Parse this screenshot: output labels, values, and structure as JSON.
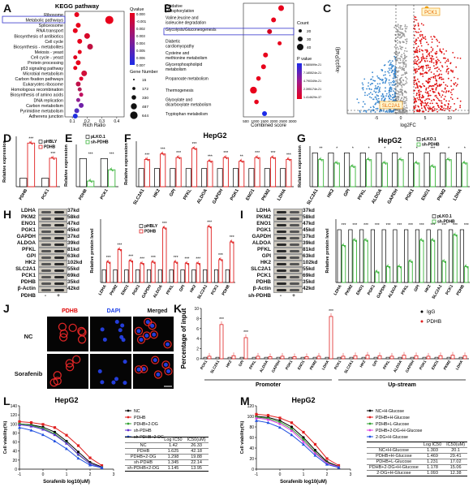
{
  "panels": {
    "A": {
      "label": "A",
      "title": "KEGG pathway",
      "xlabel": "Rich Ratio",
      "terms": [
        "Ribosome",
        "Metabolic pathways",
        "Spliceosome",
        "RNA transport",
        "Biosynthesis of antibiotics",
        "Cell cycle",
        "Biosynthesis - metabolites",
        "Meiosis - yeast",
        "Cell cycle - yeast",
        "Protein processing",
        "p53 signaling pathway",
        "Microbial metabolism",
        "Carbon fixation pathways",
        "Eukaryotes ribosome",
        "Homologous recombination",
        "Biosynthesis of amino acids",
        "DNA replication",
        "Carbon metabolism",
        "Pyrimidine metabolism",
        "Adherens junction"
      ],
      "highlight": "Metabolic pathways",
      "xticks": [
        "0.1",
        "0.2",
        "0.3",
        "0.4"
      ],
      "qvalue_title": "Qvalue",
      "qvalue_ticks": [
        "0.000",
        "-0.001",
        "0.002",
        "0.003",
        "0.004",
        "0.005",
        "0.006",
        "0.007"
      ],
      "gene_title": "Gene Number",
      "gene_ticks": [
        "15",
        "172",
        "330",
        "487",
        "644"
      ]
    },
    "B": {
      "label": "B",
      "xlabel": "Combined score",
      "terms": [
        "Oxidative phosphorylation",
        "Valine,leucine and isoleucine degradation",
        "Glycolysis/Gluconeogenesis",
        "Diabetic cardiomyopathy",
        "Cysteine and methionine metabolism",
        "Glycerophospholipid metabolism",
        "Propanoate metabolism",
        "Thermogenesis",
        "Glyoxylate and dicarboxylate metabolism",
        "Tryptophan metabolism"
      ],
      "highlight": "Glycolysis/Gluconeogenesis",
      "xticks": [
        "500",
        "1000",
        "1500",
        "2000",
        "2500",
        "3000"
      ],
      "count_title": "Count",
      "count_ticks": [
        "20",
        "30",
        "40"
      ],
      "p_title": "P value",
      "p_ticks": [
        "9.580699e-21",
        "7.185524e-21",
        "4.790349e-21",
        "2.395174e-21",
        "1.414629e-37"
      ]
    },
    "C": {
      "label": "C",
      "xlabel": "log2FC",
      "ylabel": "-log10(Padj)",
      "xticks": [
        "-5",
        "0",
        "5",
        "10"
      ],
      "ann_up": "PCK1",
      "ann_down": "SLC2A1"
    },
    "D": {
      "label": "D",
      "ylabel": "Relative expression",
      "legend": [
        "pHBLY",
        "PDHB"
      ],
      "categories": [
        "PDHB",
        "PCK1"
      ],
      "sig": [
        "***",
        "***"
      ]
    },
    "E": {
      "label": "E",
      "ylabel": "Relative expression",
      "legend": [
        "pLKO.1",
        "sh-PDHB"
      ],
      "categories": [
        "PDHB",
        "PCK1"
      ],
      "sig": [
        "***",
        "***"
      ]
    },
    "F": {
      "label": "F",
      "title": "HepG2",
      "ylabel": "Relative expression",
      "categories": [
        "SLC2A1",
        "HK2",
        "GPI",
        "PFKL",
        "ALDOA",
        "GAPDH",
        "PGK1",
        "ENO1",
        "PKM2",
        "LDHA"
      ],
      "sig": [
        "***",
        "***",
        "***",
        "***",
        "***",
        "***",
        "**",
        "***",
        "***",
        "***"
      ]
    },
    "G": {
      "label": "G",
      "title": "HepG2",
      "ylabel": "Relative expression",
      "legend": [
        "pLKO.1",
        "sh-PDHB"
      ],
      "categories": [
        "SLC2A1",
        "HK2",
        "GPI",
        "PFKL",
        "ALDOA",
        "GAPDH",
        "PGK1",
        "ENO1",
        "PKM2",
        "LDHA"
      ],
      "sig": [
        "**",
        "*",
        "*",
        "*",
        "*",
        "*",
        "*",
        "***",
        "*",
        "*"
      ]
    },
    "H": {
      "label": "H",
      "ylabel": "Relative protein level",
      "legend": [
        "pHBLY",
        "PDHB"
      ],
      "blots": [
        [
          "LDHA",
          "37kd"
        ],
        [
          "PKM2",
          "58kd"
        ],
        [
          "ENO1",
          "47kd"
        ],
        [
          "PGK1",
          "45kd"
        ],
        [
          "GAPDH",
          "37kd"
        ],
        [
          "ALDOA",
          "39kd"
        ],
        [
          "PFKL",
          "81kd"
        ],
        [
          "GPI",
          "63kd"
        ],
        [
          "HK2",
          "102kd"
        ],
        [
          "SLC2A1",
          "55kd"
        ],
        [
          "PCK1",
          "69kd"
        ],
        [
          "PDHB",
          "35kd"
        ],
        [
          "β-Actin",
          "42kd"
        ]
      ],
      "bottom": [
        "PDHB",
        "-",
        "+"
      ],
      "categories": [
        "LDHA",
        "PKM2",
        "ENO1",
        "PGK1",
        "GAPDH",
        "ALDOA",
        "PFKL",
        "GPI",
        "HK2",
        "SLC2A1",
        "PCK1",
        "PDHB"
      ],
      "sig": [
        "***",
        "***",
        "***",
        "***",
        "***",
        "***",
        "***",
        "***",
        "***",
        "***",
        "***",
        "***"
      ]
    },
    "I": {
      "label": "I",
      "ylabel": "Relative protein level",
      "legend": [
        "pLKO.1",
        "sh-PDHB"
      ],
      "blots": [
        [
          "LDHA",
          "37kd"
        ],
        [
          "PKM2",
          "58kd"
        ],
        [
          "ENO1",
          "47kd"
        ],
        [
          "PGK1",
          "45kd"
        ],
        [
          "GAPDH",
          "37kd"
        ],
        [
          "ALDOA",
          "39kd"
        ],
        [
          "PFKL",
          "81kd"
        ],
        [
          "GPI",
          "63kd"
        ],
        [
          "HK2",
          "102kd"
        ],
        [
          "SLC2A1",
          "55kd"
        ],
        [
          "PCK1",
          "69kd"
        ],
        [
          "PDHB",
          "35kd"
        ],
        [
          "β-Actin",
          "42kd"
        ]
      ],
      "bottom": [
        "sh-PDHB",
        "-",
        "+"
      ],
      "categories": [
        "LDHA",
        "PKM2",
        "ENO1",
        "PGK1",
        "GAPDH",
        "ALDOA",
        "PFKL",
        "GPI",
        "HK2",
        "SLC2A1",
        "PCK1",
        "PDHB"
      ],
      "sig": [
        "***",
        "***",
        "***",
        "***",
        "***",
        "***",
        "***",
        "***",
        "***",
        "***",
        "***",
        "***"
      ]
    },
    "J": {
      "label": "J",
      "cols": [
        "PDHB",
        "DAPI",
        "Merged"
      ],
      "rows": [
        "NC",
        "Sorafenib"
      ]
    },
    "K": {
      "label": "K",
      "ylabel": "Percentage of input",
      "legend": [
        "IgG",
        "PDHB"
      ],
      "yticks": [
        "0",
        "2",
        "4",
        "6",
        "8",
        "10"
      ],
      "categories": [
        "PCK1",
        "SLC2A1",
        "HK2",
        "GPI",
        "PFKL",
        "ALDOA",
        "GAPDH",
        "PGK1",
        "ENO1",
        "PKM2",
        "LDHA",
        "PCK1",
        "SLC2A1",
        "HK2",
        "GPI",
        "PFKL",
        "ALDOA",
        "GAPDH",
        "PGK1",
        "ENO1",
        "PKM2",
        "LDHA"
      ],
      "group_labels": [
        "Promoter",
        "Up-stream"
      ]
    },
    "L": {
      "label": "L",
      "title": "HepG2",
      "ylabel": "Cell viability(%)",
      "xlabel": "Sorafenib log10(uM)",
      "legend": [
        "NC",
        "PDHB",
        "PDHB+2-DG",
        "sh-PDHB",
        "sh-PDHB+2-DG"
      ],
      "yticks": [
        "0",
        "20",
        "40",
        "60",
        "80",
        "100",
        "120",
        "140"
      ],
      "xticks": [
        "-1",
        "0",
        "1",
        "2",
        "3"
      ],
      "table_header": [
        "",
        "Log IC50",
        "IC50(uM)"
      ],
      "table": [
        [
          "NC",
          "1.42",
          "26.33"
        ],
        [
          "PDHB",
          "1.625",
          "42.18"
        ],
        [
          "PDHB+2-DG",
          "1.298",
          "19.88"
        ],
        [
          "sh-PDHB",
          "1.345",
          "22.14"
        ],
        [
          "sh-PDHB+2-DG",
          "1.145",
          "13.95"
        ]
      ]
    },
    "M": {
      "label": "M",
      "title": "HepG2",
      "ylabel": "Cell viability(%)",
      "xlabel": "Sorafenib log10(uM)",
      "legend": [
        "NC+H-Glucose",
        "PDHB+H-Glucose",
        "PDHB+L-Glucose",
        "PDHB+2-DG+H-Glucose",
        "2-DG+H-Glucose"
      ],
      "yticks": [
        "0",
        "20",
        "40",
        "60",
        "80",
        "100",
        "120"
      ],
      "xticks": [
        "-1",
        "0",
        "1",
        "2",
        "3"
      ],
      "table_header": [
        "",
        "Log IC50",
        "IC50(uM)"
      ],
      "table": [
        [
          "NC+H-Glucose",
          "1.303",
          "20.1"
        ],
        [
          "PDHB+H-Glucose",
          "1.469",
          "29.41"
        ],
        [
          "PDHB+L-Glucose",
          "1.231",
          "17.02"
        ],
        [
          "PDHB+2-DG+H-Glucose",
          "1.178",
          "15.06"
        ],
        [
          "2-DG+H-Glucose",
          "1.093",
          "12.38"
        ]
      ]
    }
  },
  "chart_data": [
    {
      "panel": "D",
      "type": "bar",
      "categories": [
        "PDHB",
        "PCK1"
      ],
      "series": [
        {
          "name": "pHBLY",
          "values": [
            1.0,
            1.0
          ]
        },
        {
          "name": "PDHB",
          "values": [
            5.2,
            3.4
          ]
        }
      ],
      "ylim": [
        0,
        6
      ]
    },
    {
      "panel": "E",
      "type": "bar",
      "categories": [
        "PDHB",
        "PCK1"
      ],
      "series": [
        {
          "name": "pLKO.1",
          "values": [
            1.0,
            1.0
          ]
        },
        {
          "name": "sh-PDHB",
          "values": [
            0.2,
            0.6
          ]
        }
      ],
      "ylim": [
        0,
        1.5
      ]
    },
    {
      "panel": "F",
      "type": "bar",
      "categories": [
        "SLC2A1",
        "HK2",
        "GPI",
        "PFKL",
        "ALDOA",
        "GAPDH",
        "PGK1",
        "ENO1",
        "PKM2",
        "LDHA"
      ],
      "series": [
        {
          "name": "pHBLY",
          "values": [
            1,
            1,
            1,
            1,
            1,
            1,
            1,
            1,
            1,
            1
          ]
        },
        {
          "name": "PDHB",
          "values": [
            1.5,
            1.8,
            1.6,
            2.1,
            1.4,
            1.6,
            1.4,
            1.6,
            1.6,
            1.5
          ]
        }
      ],
      "ylim": [
        0,
        2.5
      ]
    },
    {
      "panel": "G",
      "type": "bar",
      "categories": [
        "SLC2A1",
        "HK2",
        "GPI",
        "PFKL",
        "ALDOA",
        "GAPDH",
        "PGK1",
        "ENO1",
        "PKM2",
        "LDHA"
      ],
      "series": [
        {
          "name": "pLKO.1",
          "values": [
            1,
            1,
            1,
            1,
            1,
            1,
            1,
            1,
            1,
            1
          ]
        },
        {
          "name": "sh-PDHB",
          "values": [
            0.8,
            0.7,
            0.6,
            0.8,
            0.7,
            0.8,
            0.7,
            0.6,
            0.8,
            0.7
          ]
        }
      ],
      "ylim": [
        0,
        1.2
      ]
    },
    {
      "panel": "H",
      "type": "bar",
      "categories": [
        "LDHA",
        "PKM2",
        "ENO1",
        "PGK1",
        "GAPDH",
        "ALDOA",
        "PFKL",
        "GPI",
        "HK2",
        "SLC2A1",
        "PCK1",
        "PDHB"
      ],
      "series": [
        {
          "name": "pHBLY",
          "values": [
            1,
            1,
            1,
            1,
            1,
            1,
            1,
            1,
            1,
            1,
            1,
            1
          ]
        },
        {
          "name": "PDHB",
          "values": [
            1.6,
            2.6,
            1.7,
            1.5,
            1.6,
            4.3,
            1.6,
            1.5,
            1.5,
            4.4,
            1.8,
            3.2
          ]
        }
      ],
      "ylim": [
        0,
        5
      ]
    },
    {
      "panel": "I",
      "type": "bar",
      "categories": [
        "LDHA",
        "PKM2",
        "ENO1",
        "PGK1",
        "GAPDH",
        "ALDOA",
        "PFKL",
        "GPI",
        "HK2",
        "SLC2A1",
        "PCK1",
        "PDHB"
      ],
      "series": [
        {
          "name": "pLKO.1",
          "values": [
            1,
            1,
            1,
            1,
            1,
            1,
            1,
            1,
            1,
            1,
            1,
            1
          ]
        },
        {
          "name": "sh-PDHB",
          "values": [
            0.7,
            0.8,
            0.8,
            0.2,
            0.3,
            0.3,
            0.4,
            0.8,
            0.8,
            0.4,
            0.9,
            0.3
          ]
        }
      ],
      "ylim": [
        0,
        1.2
      ]
    },
    {
      "panel": "K",
      "type": "bar",
      "categories": [
        "PCK1",
        "SLC2A1",
        "HK2",
        "GPI",
        "PFKL",
        "ALDOA",
        "GAPDH",
        "PGK1",
        "ENO1",
        "PKM2",
        "LDHA",
        "PCK1",
        "SLC2A1",
        "HK2",
        "GPI",
        "PFKL",
        "ALDOA",
        "GAPDH",
        "PGK1",
        "ENO1",
        "PKM2",
        "LDHA"
      ],
      "series": [
        {
          "name": "IgG",
          "values": [
            0.3,
            0.3,
            0.3,
            0.3,
            0.3,
            0.3,
            0.3,
            0.3,
            0.3,
            0.3,
            0.3,
            0.3,
            0.3,
            0.3,
            0.3,
            0.3,
            0.3,
            0.3,
            0.3,
            0.3,
            0.3,
            0.3
          ]
        },
        {
          "name": "PDHB",
          "values": [
            0.5,
            6.8,
            0.6,
            4.2,
            0.5,
            0.4,
            0.5,
            0.4,
            0.4,
            0.5,
            8.4,
            0.5,
            0.6,
            0.7,
            0.6,
            0.5,
            0.7,
            0.6,
            0.5,
            0.6,
            0.7,
            0.6
          ]
        }
      ],
      "ylim": [
        0,
        10
      ]
    },
    {
      "panel": "L",
      "type": "line",
      "x": [
        -1,
        -0.5,
        0,
        0.5,
        1,
        1.5,
        2,
        2.5
      ],
      "series": [
        {
          "name": "NC",
          "values": [
            100,
            98,
            93,
            82,
            62,
            38,
            15,
            5
          ]
        },
        {
          "name": "PDHB",
          "values": [
            105,
            103,
            99,
            92,
            75,
            52,
            25,
            8
          ]
        },
        {
          "name": "PDHB+2-DG",
          "values": [
            100,
            97,
            90,
            78,
            58,
            32,
            12,
            4
          ]
        },
        {
          "name": "sh-PDHB",
          "values": [
            98,
            95,
            88,
            76,
            57,
            33,
            12,
            4
          ]
        },
        {
          "name": "sh-PDHB+2-DG",
          "values": [
            92,
            86,
            76,
            62,
            45,
            24,
            9,
            3
          ]
        }
      ],
      "xlim": [
        -1,
        3
      ],
      "ylim": [
        0,
        140
      ]
    },
    {
      "panel": "M",
      "type": "line",
      "x": [
        -1,
        -0.5,
        0,
        0.5,
        1,
        1.5,
        2,
        2.5
      ],
      "series": [
        {
          "name": "NC+H-Glucose",
          "values": [
            100,
            98,
            92,
            80,
            60,
            36,
            14,
            5
          ]
        },
        {
          "name": "PDHB+H-Glucose",
          "values": [
            104,
            102,
            97,
            88,
            70,
            47,
            20,
            7
          ]
        },
        {
          "name": "PDHB+L-Glucose",
          "values": [
            99,
            96,
            89,
            76,
            56,
            32,
            12,
            4
          ]
        },
        {
          "name": "PDHB+2-DG+H-Glucose",
          "values": [
            97,
            94,
            86,
            73,
            52,
            30,
            11,
            4
          ]
        },
        {
          "name": "2-DG+H-Glucose",
          "values": [
            92,
            88,
            79,
            65,
            47,
            26,
            9,
            3
          ]
        }
      ],
      "xlim": [
        -1,
        3
      ],
      "ylim": [
        0,
        120
      ]
    }
  ]
}
